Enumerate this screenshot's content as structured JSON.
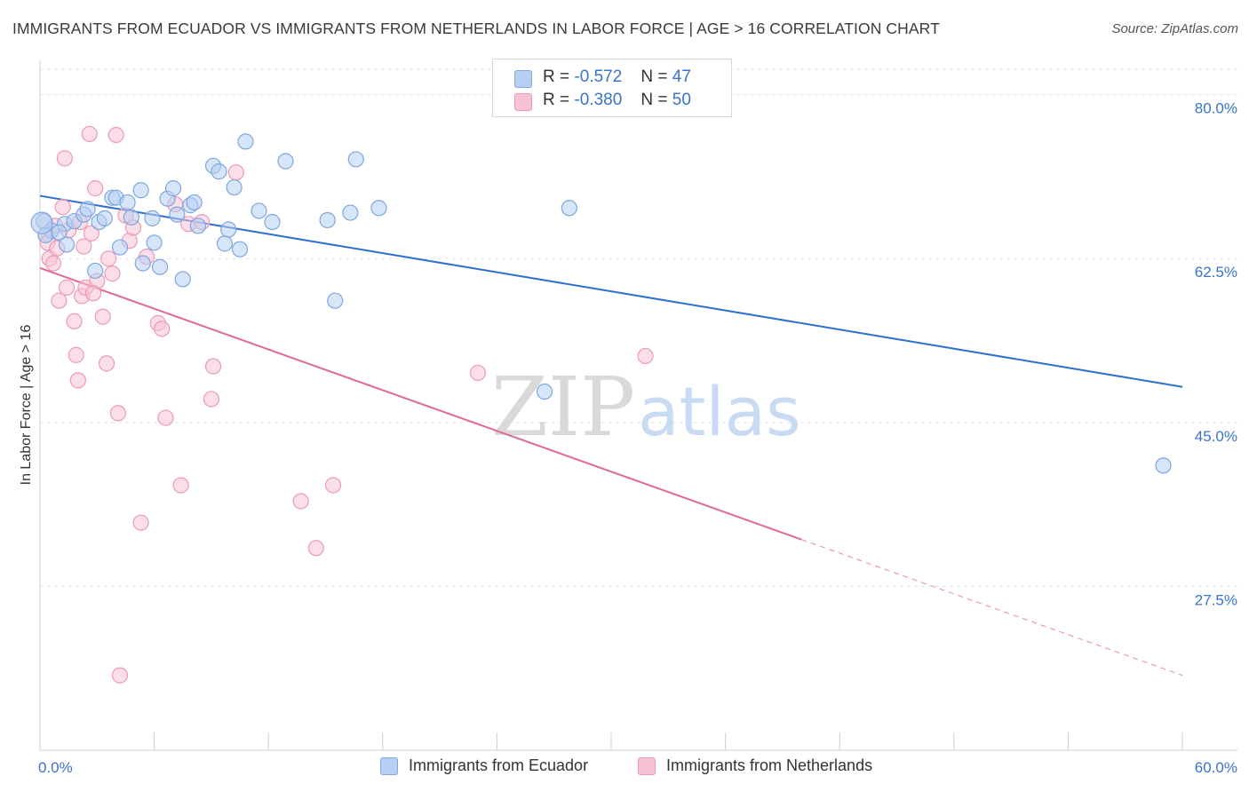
{
  "title": "IMMIGRANTS FROM ECUADOR VS IMMIGRANTS FROM NETHERLANDS IN LABOR FORCE | AGE > 16 CORRELATION CHART",
  "source": "Source: ZipAtlas.com",
  "watermark": {
    "zip": "ZIP",
    "atlas": "atlas"
  },
  "legend": {
    "rows": [
      {
        "r_label": "R =",
        "r_value": "-0.572",
        "n_label": "N =",
        "n_value": "47"
      },
      {
        "r_label": "R =",
        "r_value": "-0.380",
        "n_label": "N =",
        "n_value": "50"
      }
    ]
  },
  "bottom_legend": [
    "Immigrants from Ecuador",
    "Immigrants from Netherlands"
  ],
  "colors": {
    "blue_fill": "#b7cff2",
    "blue_stroke": "#7ea6e0",
    "blue_line": "#2f6fd0",
    "pink_fill": "#f7c3d4",
    "pink_stroke": "#ec9ab5",
    "pink_line": "#e06a95",
    "tick_text": "#3a74c8",
    "grid": "#e2e2e2"
  },
  "chart_data": {
    "type": "scatter",
    "title": "IMMIGRANTS FROM ECUADOR VS IMMIGRANTS FROM NETHERLANDS IN LABOR FORCE | AGE > 16 CORRELATION CHART",
    "xlabel": "",
    "ylabel": "In Labor Force | Age > 16",
    "xlim": [
      0,
      60
    ],
    "ylim": [
      10,
      83
    ],
    "x_tick_labels": [
      "0.0%",
      "60.0%"
    ],
    "y_ticks": [
      27.5,
      45.0,
      62.5,
      80.0
    ],
    "y_tick_labels": [
      "27.5%",
      "45.0%",
      "62.5%",
      "80.0%"
    ],
    "grid": true,
    "series": [
      {
        "name": "Immigrants from Ecuador",
        "color": "#7ea6e0",
        "points": [
          [
            0.2,
            66.5
          ],
          [
            0.6,
            65.5
          ],
          [
            1.3,
            66.2
          ],
          [
            1.4,
            64.0
          ],
          [
            1.8,
            66.5
          ],
          [
            2.3,
            67.2
          ],
          [
            2.5,
            67.8
          ],
          [
            3.1,
            66.4
          ],
          [
            3.4,
            66.8
          ],
          [
            2.9,
            61.2
          ],
          [
            3.8,
            69.0
          ],
          [
            4.0,
            69.0
          ],
          [
            4.2,
            63.7
          ],
          [
            4.6,
            68.5
          ],
          [
            4.8,
            66.9
          ],
          [
            5.3,
            69.8
          ],
          [
            5.4,
            62.0
          ],
          [
            5.9,
            66.8
          ],
          [
            6.0,
            64.2
          ],
          [
            6.3,
            61.6
          ],
          [
            6.7,
            68.9
          ],
          [
            7.0,
            70.0
          ],
          [
            7.2,
            67.2
          ],
          [
            7.5,
            60.3
          ],
          [
            7.9,
            68.2
          ],
          [
            8.1,
            68.5
          ],
          [
            8.3,
            66.0
          ],
          [
            9.1,
            72.4
          ],
          [
            9.4,
            71.8
          ],
          [
            9.7,
            64.1
          ],
          [
            9.9,
            65.6
          ],
          [
            10.2,
            70.1
          ],
          [
            10.5,
            63.5
          ],
          [
            10.8,
            75.0
          ],
          [
            11.5,
            67.6
          ],
          [
            12.2,
            66.4
          ],
          [
            12.9,
            72.9
          ],
          [
            15.1,
            66.6
          ],
          [
            15.5,
            58.0
          ],
          [
            16.3,
            67.4
          ],
          [
            16.6,
            73.1
          ],
          [
            17.8,
            67.9
          ],
          [
            27.8,
            67.9
          ],
          [
            26.5,
            48.3
          ],
          [
            59.0,
            40.4
          ],
          [
            0.3,
            65.0
          ],
          [
            1.0,
            65.3
          ]
        ],
        "trend": {
          "x": [
            0,
            60
          ],
          "y": [
            69.2,
            48.8
          ]
        }
      },
      {
        "name": "Immigrants from Netherlands",
        "color": "#ec9ab5",
        "points": [
          [
            0.3,
            65.0
          ],
          [
            0.4,
            64.2
          ],
          [
            0.5,
            62.5
          ],
          [
            0.7,
            62.0
          ],
          [
            0.8,
            66.0
          ],
          [
            1.0,
            58.0
          ],
          [
            1.2,
            68.0
          ],
          [
            1.3,
            73.2
          ],
          [
            1.5,
            65.5
          ],
          [
            1.8,
            55.8
          ],
          [
            1.9,
            52.2
          ],
          [
            2.0,
            49.5
          ],
          [
            2.2,
            58.5
          ],
          [
            2.3,
            63.8
          ],
          [
            2.4,
            59.4
          ],
          [
            2.6,
            75.8
          ],
          [
            2.7,
            65.2
          ],
          [
            2.9,
            70.0
          ],
          [
            3.0,
            60.1
          ],
          [
            3.3,
            56.3
          ],
          [
            3.5,
            51.3
          ],
          [
            3.8,
            60.9
          ],
          [
            4.0,
            75.7
          ],
          [
            4.1,
            46.0
          ],
          [
            4.2,
            18.0
          ],
          [
            4.5,
            67.1
          ],
          [
            4.7,
            64.4
          ],
          [
            4.9,
            65.8
          ],
          [
            5.3,
            34.3
          ],
          [
            5.6,
            62.7
          ],
          [
            6.2,
            55.6
          ],
          [
            6.4,
            55.0
          ],
          [
            6.6,
            45.5
          ],
          [
            7.1,
            68.3
          ],
          [
            7.4,
            38.3
          ],
          [
            7.8,
            66.2
          ],
          [
            8.5,
            66.4
          ],
          [
            9.0,
            47.5
          ],
          [
            9.1,
            51.0
          ],
          [
            10.3,
            71.7
          ],
          [
            13.7,
            36.6
          ],
          [
            14.5,
            31.6
          ],
          [
            15.4,
            38.3
          ],
          [
            23.0,
            50.3
          ],
          [
            31.8,
            52.1
          ],
          [
            0.9,
            63.6
          ],
          [
            1.4,
            59.4
          ],
          [
            2.8,
            58.8
          ],
          [
            3.6,
            62.5
          ],
          [
            2.1,
            66.4
          ]
        ],
        "trend": {
          "x": [
            0,
            40
          ],
          "y": [
            61.5,
            32.5
          ]
        },
        "trend_dashed": {
          "x": [
            40,
            60
          ],
          "y": [
            32.5,
            18.0
          ]
        }
      }
    ]
  }
}
